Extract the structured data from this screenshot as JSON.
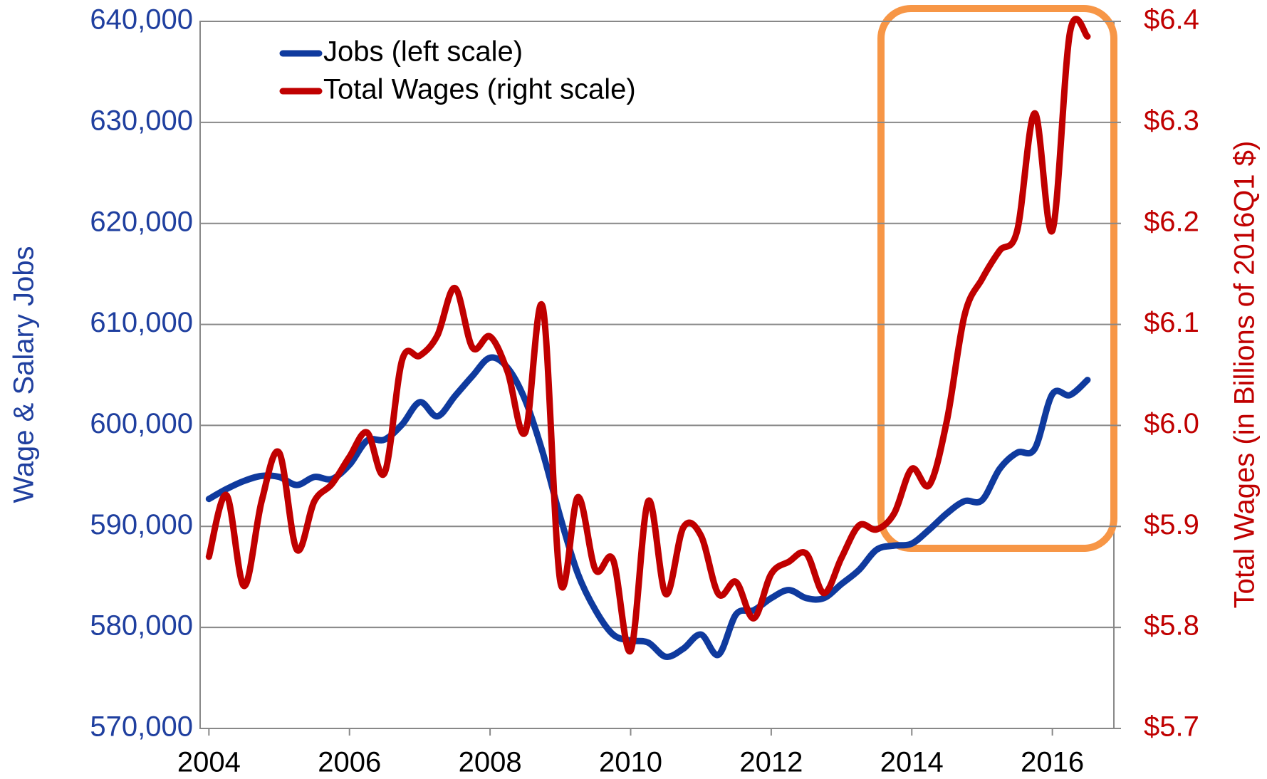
{
  "chart_data": {
    "type": "line",
    "y_label": "Wage & Salary Jobs",
    "y2_label": "Total Wages (in Billions of 2016Q1 $)",
    "x": [
      2004,
      2004.25,
      2004.5,
      2004.75,
      2005,
      2005.25,
      2005.5,
      2005.75,
      2006,
      2006.25,
      2006.5,
      2006.75,
      2007,
      2007.25,
      2007.5,
      2007.75,
      2008,
      2008.25,
      2008.5,
      2008.75,
      2009,
      2009.25,
      2009.5,
      2009.75,
      2010,
      2010.25,
      2010.5,
      2010.75,
      2011,
      2011.25,
      2011.5,
      2011.75,
      2012,
      2012.25,
      2012.5,
      2012.75,
      2013,
      2013.25,
      2013.5,
      2013.75,
      2014,
      2014.25,
      2014.5,
      2014.75,
      2015,
      2015.25,
      2015.5,
      2015.75,
      2016,
      2016.25,
      2016.5
    ],
    "series": [
      {
        "name": "Jobs (left scale)",
        "color": "#0f3a9e",
        "axis": "y",
        "values": [
          592720,
          593700,
          594500,
          595000,
          594900,
          594100,
          594900,
          594700,
          596100,
          598500,
          598600,
          600100,
          602300,
          600900,
          602900,
          604900,
          606700,
          605700,
          602500,
          597300,
          590900,
          585300,
          581700,
          579300,
          578700,
          578500,
          577100,
          577900,
          579300,
          577300,
          581300,
          581700,
          582900,
          583700,
          582900,
          582900,
          584300,
          585700,
          587700,
          588100,
          588300,
          589700,
          591300,
          592500,
          592600,
          595700,
          597300,
          597700,
          603100,
          603000,
          604500
        ]
      },
      {
        "name": "Total Wages (right scale)",
        "color": "#c00000",
        "axis": "y2",
        "values": [
          5.87,
          5.931,
          5.841,
          5.925,
          5.973,
          5.877,
          5.925,
          5.942,
          5.969,
          5.993,
          5.953,
          6.065,
          6.069,
          6.089,
          6.136,
          6.077,
          6.088,
          6.053,
          5.993,
          6.117,
          5.845,
          5.929,
          5.857,
          5.867,
          5.777,
          5.925,
          5.833,
          5.899,
          5.891,
          5.833,
          5.845,
          5.809,
          5.853,
          5.865,
          5.873,
          5.834,
          5.869,
          5.901,
          5.897,
          5.913,
          5.957,
          5.941,
          6.005,
          6.109,
          6.145,
          6.173,
          6.193,
          6.309,
          6.193,
          6.389,
          6.385
        ]
      }
    ],
    "xlim": [
      2003.875,
      2016.875
    ],
    "xticks": [
      2004,
      2006,
      2008,
      2010,
      2012,
      2014,
      2016
    ],
    "ylim": [
      570000,
      640000
    ],
    "yticks": [
      {
        "value": 570000,
        "label": "570,000"
      },
      {
        "value": 580000,
        "label": "580,000"
      },
      {
        "value": 590000,
        "label": "590,000"
      },
      {
        "value": 600000,
        "label": "600,000"
      },
      {
        "value": 610000,
        "label": "610,000"
      },
      {
        "value": 620000,
        "label": "620,000"
      },
      {
        "value": 630000,
        "label": "630,000"
      },
      {
        "value": 640000,
        "label": "640,000"
      }
    ],
    "y2lim": [
      5.7,
      6.4
    ],
    "y2ticks": [
      {
        "value": 5.7,
        "label": "$5.7"
      },
      {
        "value": 5.8,
        "label": "$5.8"
      },
      {
        "value": 5.9,
        "label": "$5.9"
      },
      {
        "value": 6.0,
        "label": "$6.0"
      },
      {
        "value": 6.1,
        "label": "$6.1"
      },
      {
        "value": 6.2,
        "label": "$6.2"
      },
      {
        "value": 6.3,
        "label": "$6.3"
      },
      {
        "value": 6.4,
        "label": "$6.4"
      }
    ],
    "grid": true,
    "legend": "upper left"
  }
}
